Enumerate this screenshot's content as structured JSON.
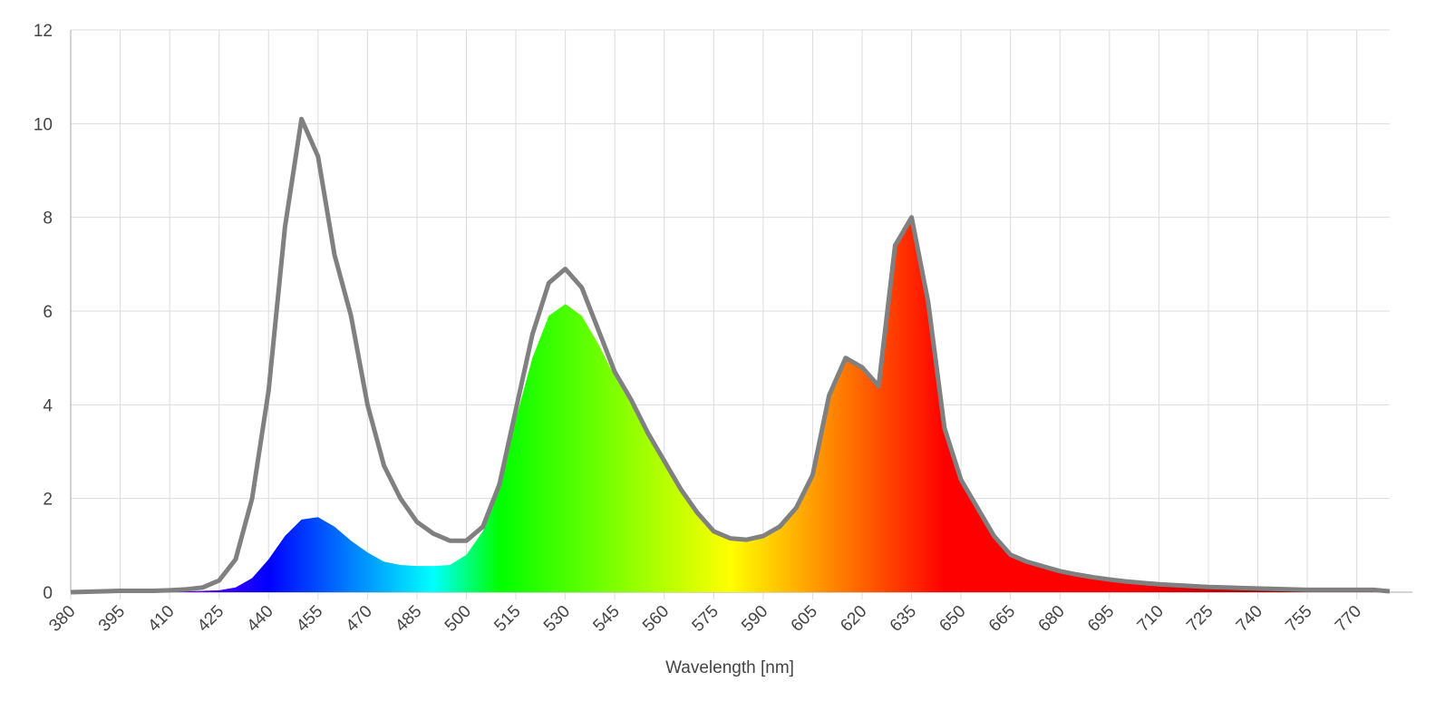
{
  "chart_data": {
    "type": "area",
    "x_label": "Wavelength [nm]",
    "x": [
      380,
      385,
      390,
      395,
      400,
      405,
      410,
      415,
      420,
      425,
      430,
      435,
      440,
      445,
      450,
      455,
      460,
      465,
      470,
      475,
      480,
      485,
      490,
      495,
      500,
      505,
      510,
      515,
      520,
      525,
      530,
      535,
      540,
      545,
      550,
      555,
      560,
      565,
      570,
      575,
      580,
      585,
      590,
      595,
      600,
      605,
      610,
      615,
      620,
      625,
      630,
      635,
      640,
      645,
      650,
      655,
      660,
      665,
      670,
      675,
      680,
      685,
      690,
      695,
      700,
      705,
      710,
      715,
      720,
      725,
      730,
      735,
      740,
      745,
      750,
      755,
      760,
      765,
      770,
      775,
      780
    ],
    "series": [
      {
        "color": "#808080",
        "values": [
          0,
          0.01,
          0.02,
          0.03,
          0.03,
          0.03,
          0.04,
          0.06,
          0.1,
          0.25,
          0.7,
          2.0,
          4.3,
          7.8,
          10.1,
          9.3,
          7.2,
          5.9,
          4.0,
          2.7,
          2.0,
          1.5,
          1.25,
          1.1,
          1.1,
          1.4,
          2.3,
          3.9,
          5.5,
          6.6,
          6.9,
          6.5,
          5.6,
          4.7,
          4.1,
          3.4,
          2.8,
          2.2,
          1.7,
          1.3,
          1.15,
          1.12,
          1.2,
          1.4,
          1.8,
          2.5,
          4.2,
          5.0,
          4.8,
          4.4,
          7.4,
          8.0,
          6.2,
          3.5,
          2.4,
          1.8,
          1.2,
          0.8,
          0.65,
          0.55,
          0.45,
          0.38,
          0.32,
          0.27,
          0.23,
          0.2,
          0.17,
          0.15,
          0.13,
          0.11,
          0.1,
          0.09,
          0.08,
          0.07,
          0.06,
          0.05,
          0.05,
          0.05,
          0.05,
          0.05,
          0.02
        ]
      },
      {
        "values": [
          0,
          0.01,
          0.02,
          0.03,
          0.03,
          0.02,
          0.02,
          0.02,
          0.03,
          0.04,
          0.1,
          0.3,
          0.7,
          1.2,
          1.55,
          1.6,
          1.4,
          1.1,
          0.85,
          0.65,
          0.58,
          0.56,
          0.56,
          0.58,
          0.8,
          1.3,
          2.3,
          3.7,
          5.0,
          5.9,
          6.15,
          5.9,
          5.3,
          4.6,
          4.0,
          3.4,
          2.8,
          2.2,
          1.7,
          1.3,
          1.15,
          1.12,
          1.2,
          1.4,
          1.8,
          2.5,
          4.2,
          5.0,
          4.8,
          4.4,
          7.4,
          8.0,
          6.2,
          3.5,
          2.4,
          1.8,
          1.2,
          0.8,
          0.65,
          0.55,
          0.45,
          0.38,
          0.32,
          0.27,
          0.23,
          0.2,
          0.17,
          0.15,
          0.13,
          0.11,
          0.1,
          0.09,
          0.08,
          0.07,
          0.06,
          0.05,
          0.05,
          0.05,
          0.05,
          0.05,
          0.02
        ]
      }
    ],
    "xlim": [
      380,
      780
    ],
    "ylim": [
      0,
      12
    ],
    "xticks": [
      380,
      395,
      410,
      425,
      440,
      455,
      470,
      485,
      500,
      515,
      530,
      545,
      560,
      575,
      590,
      605,
      620,
      635,
      650,
      665,
      680,
      695,
      710,
      725,
      740,
      755,
      770
    ],
    "yticks": [
      0,
      2,
      4,
      6,
      8,
      10,
      12
    ],
    "grid": true
  }
}
